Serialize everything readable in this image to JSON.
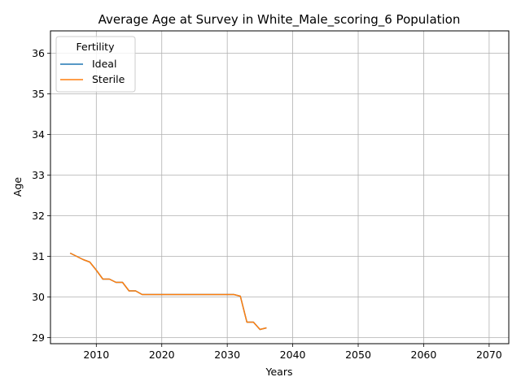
{
  "chart_data": {
    "type": "line",
    "title": "Average Age at Survey in White_Male_scoring_6 Population",
    "xlabel": "Years",
    "ylabel": "Age",
    "xlim": [
      2003,
      2073
    ],
    "ylim": [
      28.85,
      36.55
    ],
    "xticks": [
      2010,
      2020,
      2030,
      2040,
      2050,
      2060,
      2070
    ],
    "yticks": [
      29,
      30,
      31,
      32,
      33,
      34,
      35,
      36
    ],
    "grid": true,
    "legend": {
      "title": "Fertility",
      "placement": "top-left"
    },
    "series": [
      {
        "name": "Ideal",
        "color": "#1f77b4",
        "x": [
          2006,
          2007,
          2008,
          2009,
          2010,
          2011,
          2012,
          2013,
          2014,
          2015,
          2016,
          2017,
          2018,
          2019,
          2020,
          2021,
          2022,
          2023,
          2024,
          2025,
          2026,
          2027,
          2028,
          2029,
          2030,
          2031,
          2032,
          2033,
          2034,
          2035,
          2036
        ],
        "y": [
          31.08,
          31.0,
          30.92,
          30.86,
          30.66,
          30.44,
          30.44,
          30.36,
          30.36,
          30.15,
          30.15,
          30.06,
          30.06,
          30.06,
          30.06,
          30.06,
          30.06,
          30.06,
          30.06,
          30.06,
          30.06,
          30.06,
          30.06,
          30.06,
          30.06,
          30.06,
          30.02,
          29.38,
          29.38,
          29.2,
          29.24
        ]
      },
      {
        "name": "Sterile",
        "color": "#ff7f0e",
        "x": [
          2006,
          2007,
          2008,
          2009,
          2010,
          2011,
          2012,
          2013,
          2014,
          2015,
          2016,
          2017,
          2018,
          2019,
          2020,
          2021,
          2022,
          2023,
          2024,
          2025,
          2026,
          2027,
          2028,
          2029,
          2030,
          2031,
          2032,
          2033,
          2034,
          2035,
          2036
        ],
        "y": [
          31.08,
          31.0,
          30.92,
          30.86,
          30.66,
          30.44,
          30.44,
          30.36,
          30.36,
          30.15,
          30.15,
          30.06,
          30.06,
          30.06,
          30.06,
          30.06,
          30.06,
          30.06,
          30.06,
          30.06,
          30.06,
          30.06,
          30.06,
          30.06,
          30.06,
          30.06,
          30.02,
          29.38,
          29.38,
          29.2,
          29.24
        ]
      }
    ]
  }
}
